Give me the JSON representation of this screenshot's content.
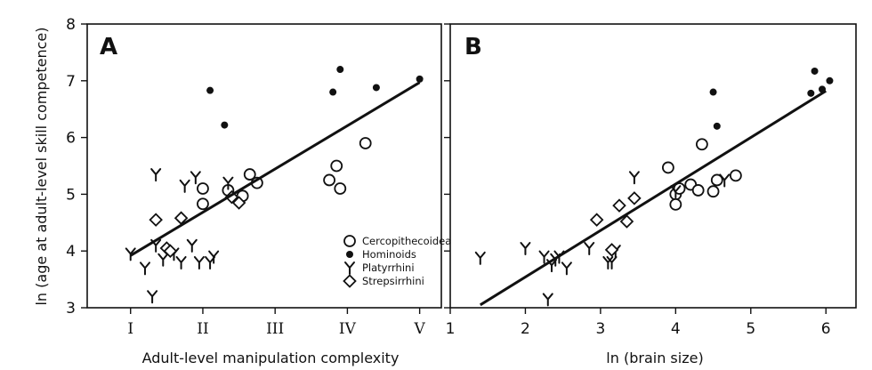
{
  "ylabel": "ln (age at adult-level skill competence)",
  "legend": {
    "placement": "bottom-right",
    "entries": [
      {
        "name": "Cercopithecoidea",
        "marker": "open-circle"
      },
      {
        "name": "Hominoids",
        "marker": "filled-circle"
      },
      {
        "name": "Platyrrhini",
        "marker": "y-glyph"
      },
      {
        "name": "Strepsirrhini",
        "marker": "open-diamond"
      }
    ]
  },
  "chart_data": [
    {
      "type": "scatter",
      "label": "A",
      "xlabel": "Adult-level manipulation complexity",
      "ylabel": "ln (age at adult-level skill competence)",
      "xlim": [
        0.4,
        5.3
      ],
      "ylim": [
        3,
        8
      ],
      "xticks": [
        1,
        2,
        3,
        4,
        5
      ],
      "xtick_labels": [
        "I",
        "II",
        "III",
        "IV",
        "V"
      ],
      "yticks": [
        3,
        4,
        5,
        6,
        7,
        8
      ],
      "yticks_labels": [
        "3",
        "4",
        "5",
        "6",
        "7",
        "8"
      ],
      "grid": false,
      "series": [
        {
          "name": "Cercopithecoidea",
          "marker": "open-circle",
          "x": [
            2.0,
            2.0,
            2.35,
            2.55,
            2.65,
            2.75,
            3.75,
            3.85,
            3.9,
            4.25
          ],
          "y": [
            5.1,
            4.83,
            5.07,
            4.97,
            5.35,
            5.2,
            5.25,
            5.5,
            5.1,
            5.9
          ]
        },
        {
          "name": "Hominoids",
          "marker": "filled-circle",
          "x": [
            2.1,
            2.3,
            3.8,
            3.9,
            4.4,
            5.0
          ],
          "y": [
            6.83,
            6.22,
            6.8,
            7.2,
            6.88,
            7.03
          ]
        },
        {
          "name": "Platyrrhini",
          "marker": "y-glyph",
          "x": [
            1.0,
            1.2,
            1.3,
            1.35,
            1.35,
            1.45,
            1.6,
            1.7,
            1.75,
            1.85,
            1.9,
            1.95,
            2.1,
            2.15,
            2.35
          ],
          "y": [
            3.95,
            3.7,
            3.2,
            5.35,
            4.1,
            3.85,
            3.95,
            3.8,
            5.15,
            4.1,
            5.3,
            3.8,
            3.8,
            3.9,
            5.2
          ]
        },
        {
          "name": "Strepsirrhini",
          "marker": "open-diamond",
          "x": [
            1.35,
            1.5,
            1.55,
            1.7,
            2.4,
            2.5
          ],
          "y": [
            4.55,
            4.05,
            4.0,
            4.58,
            4.95,
            4.85
          ]
        }
      ],
      "fit_line": {
        "x": [
          1.0,
          5.0
        ],
        "y": [
          3.92,
          6.97
        ]
      }
    },
    {
      "type": "scatter",
      "label": "B",
      "xlabel": "ln (brain size)",
      "ylabel": "",
      "xlim": [
        1,
        6.4
      ],
      "ylim": [
        3,
        8
      ],
      "xticks": [
        1,
        2,
        3,
        4,
        5,
        6
      ],
      "xtick_labels": [
        "1",
        "2",
        "3",
        "4",
        "5",
        "6"
      ],
      "yticks": [
        3,
        4,
        5,
        6,
        7,
        8
      ],
      "grid": false,
      "series": [
        {
          "name": "Cercopithecoidea",
          "marker": "open-circle",
          "x": [
            3.9,
            4.0,
            4.0,
            4.05,
            4.2,
            4.3,
            4.35,
            4.5,
            4.55,
            4.8
          ],
          "y": [
            5.47,
            5.0,
            4.82,
            5.1,
            5.17,
            5.07,
            5.88,
            5.05,
            5.25,
            5.33
          ]
        },
        {
          "name": "Hominoids",
          "marker": "filled-circle",
          "x": [
            4.5,
            4.55,
            5.8,
            5.85,
            5.95,
            6.05
          ],
          "y": [
            6.8,
            6.2,
            6.78,
            7.17,
            6.85,
            7.0
          ]
        },
        {
          "name": "Platyrrhini",
          "marker": "y-glyph",
          "x": [
            1.4,
            2.0,
            2.25,
            2.3,
            2.35,
            2.4,
            2.45,
            2.55,
            2.85,
            3.1,
            3.15,
            3.2,
            3.45,
            4.0,
            4.65
          ],
          "y": [
            3.88,
            4.05,
            3.9,
            3.15,
            3.75,
            3.85,
            3.9,
            3.7,
            4.05,
            3.8,
            3.8,
            4.0,
            5.3,
            5.05,
            5.25
          ]
        },
        {
          "name": "Strepsirrhini",
          "marker": "open-diamond",
          "x": [
            2.95,
            3.15,
            3.25,
            3.35,
            3.45
          ],
          "y": [
            4.55,
            4.02,
            4.8,
            4.52,
            4.93
          ]
        }
      ],
      "fit_line": {
        "x": [
          1.4,
          6.0
        ],
        "y": [
          3.05,
          6.82
        ]
      }
    }
  ]
}
